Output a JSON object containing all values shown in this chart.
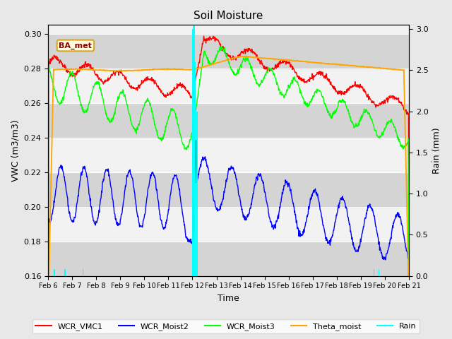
{
  "title": "Soil Moisture",
  "xlabel": "Time",
  "ylabel_left": "VWC (m3/m3)",
  "ylabel_right": "Rain (mm)",
  "ylim_left": [
    0.16,
    0.305
  ],
  "ylim_right": [
    0.0,
    3.05
  ],
  "bg_color": "#e8e8e8",
  "plot_bg_color": "#f2f2f2",
  "label_box": "BA_met",
  "x_start": 6.0,
  "x_end": 21.0,
  "xtick_labels": [
    "Feb 6",
    "Feb 7",
    "Feb 8",
    "Feb 9",
    "Feb 10",
    "Feb 11",
    "Feb 12",
    "Feb 13",
    "Feb 14",
    "Feb 15",
    "Feb 16",
    "Feb 17",
    "Feb 18",
    "Feb 19",
    "Feb 20",
    "Feb 21"
  ],
  "xtick_positions": [
    6,
    7,
    8,
    9,
    10,
    11,
    12,
    13,
    14,
    15,
    16,
    17,
    18,
    19,
    20,
    21
  ],
  "vline_x": 12.05,
  "rain_spikes_x": [
    6.25,
    6.7,
    7.45,
    12.0,
    12.1,
    12.2,
    19.55,
    19.75
  ],
  "rain_spikes_h": [
    0.08,
    0.08,
    0.08,
    3.0,
    2.6,
    2.0,
    0.08,
    0.08
  ],
  "band_colors": [
    "#dcdcdc",
    "#e8e8e8"
  ],
  "ytick_bands": [
    0.16,
    0.18,
    0.2,
    0.22,
    0.24,
    0.26,
    0.28,
    0.3,
    0.305
  ]
}
